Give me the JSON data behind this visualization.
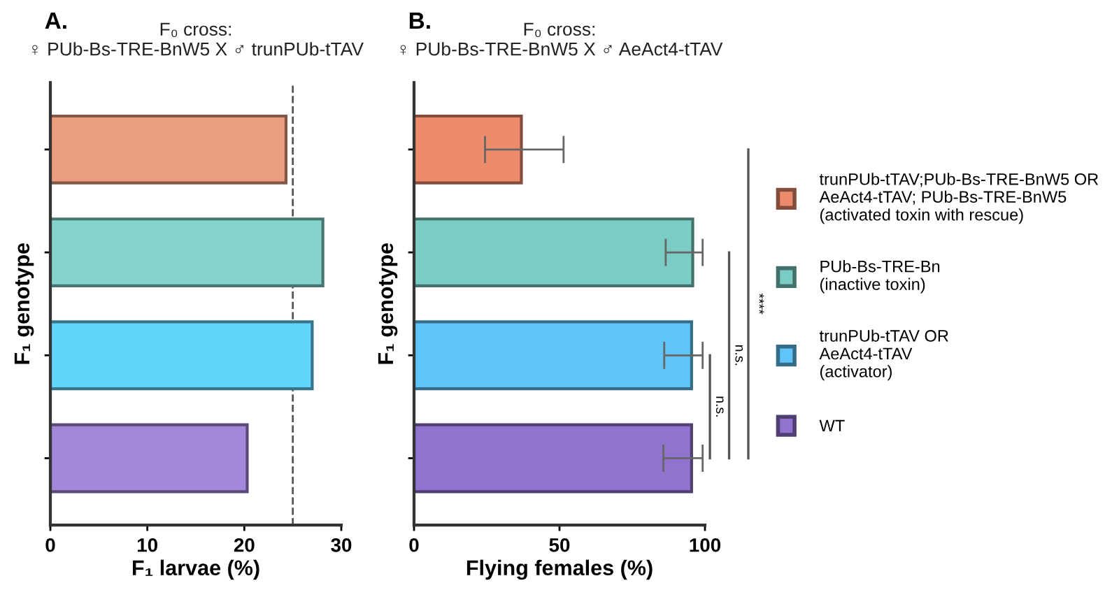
{
  "chart_data": [
    {
      "type": "bar",
      "orientation": "horizontal",
      "title": "F₀ cross:\n♀ PUb-Bs-TRE-BnW5 X ♂ trunPUb-tTAV",
      "xlabel": "F₁ larvae (%)",
      "ylabel": "F₁ genotype",
      "categories": [
        null,
        null,
        null,
        null
      ],
      "values": [
        24.3,
        28.1,
        27.0,
        20.3
      ],
      "colors": [
        "#eb9e80",
        "#85d4cc",
        "#62d5fc",
        "#a387d8"
      ],
      "xlim": [
        0,
        30
      ],
      "xticks": [
        0,
        10,
        20,
        30
      ],
      "grid": false,
      "legend": false,
      "ref_lines": [
        {
          "axis": "x",
          "value": 25,
          "color": "#555555",
          "line_style": "dashed"
        }
      ],
      "annotations": [
        "A."
      ]
    },
    {
      "type": "bar",
      "orientation": "horizontal",
      "title": "F₀ cross:\n♀ PUb-Bs-TRE-BnW5 X ♂ AeAct4-tTAV",
      "xlabel": "Flying females (%)",
      "ylabel": "F₁ genotype",
      "categories": [
        null,
        null,
        null,
        null
      ],
      "series": [
        {
          "name": "trunPUb-tTAV;PUb-Bs-TRE-BnW5 OR\nAeAct4-tTAV; PUb-Bs-TRE-BnW5\n(activated toxin with rescue)",
          "color": "#ec8c6c",
          "values": [
            36.9,
            null,
            null,
            null
          ],
          "errors": [
            [
              24.4,
              51.4
            ],
            null,
            null,
            null
          ]
        },
        {
          "name": "PUb-Bs-TRE-Bn\n(inactive toxin)",
          "color": "#7bccc4",
          "values": [
            null,
            95.8,
            null,
            null
          ],
          "errors": [
            null,
            [
              86.5,
              99.2
            ],
            null,
            null
          ]
        },
        {
          "name": "trunPUb-tTAV OR\nAeAct4-tTAV\n(activator)",
          "color": "#60c4f8",
          "values": [
            null,
            null,
            95.4,
            null
          ],
          "errors": [
            null,
            null,
            [
              86.0,
              99.2
            ],
            null
          ]
        },
        {
          "name": "WT",
          "color": "#8f73cf",
          "values": [
            null,
            null,
            null,
            95.4
          ],
          "errors": [
            null,
            null,
            null,
            [
              85.7,
              99.2
            ]
          ]
        }
      ],
      "xlim": [
        0,
        100
      ],
      "xticks": [
        0,
        50,
        100
      ],
      "grid": false,
      "legend": "right",
      "annotations": [
        "B.",
        "n.s.",
        "n.s.",
        "****"
      ]
    }
  ]
}
